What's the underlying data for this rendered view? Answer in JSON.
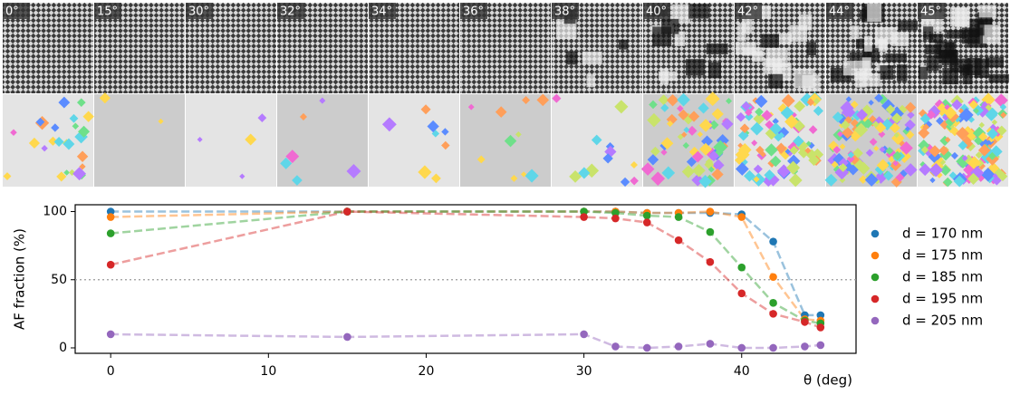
{
  "panels": {
    "labels": [
      "0°",
      "15°",
      "30°",
      "32°",
      "34°",
      "36°",
      "38°",
      "40°",
      "42°",
      "44°",
      "45°"
    ]
  },
  "chart_data": {
    "type": "line",
    "x_label": "θ (deg)",
    "y_label": "AF fraction (%)",
    "x": [
      0,
      15,
      30,
      32,
      34,
      36,
      38,
      40,
      42,
      44,
      45
    ],
    "series": [
      {
        "name": "d = 170 nm",
        "color": "#1f77b4",
        "values": [
          100,
          100,
          100,
          100,
          99,
          99,
          99,
          98,
          78,
          24,
          24
        ]
      },
      {
        "name": "d = 175 nm",
        "color": "#ff7f0e",
        "values": [
          96,
          100,
          100,
          100,
          99,
          99,
          100,
          96,
          52,
          21,
          20
        ]
      },
      {
        "name": "d = 185 nm",
        "color": "#2ca02c",
        "values": [
          84,
          100,
          100,
          99,
          97,
          96,
          85,
          59,
          33,
          20,
          18
        ]
      },
      {
        "name": "d = 195 nm",
        "color": "#d62728",
        "values": [
          61,
          100,
          96,
          95,
          92,
          79,
          63,
          40,
          25,
          19,
          15
        ]
      },
      {
        "name": "d = 205 nm",
        "color": "#9467bd",
        "values": [
          10,
          8,
          10,
          1,
          0,
          1,
          3,
          0,
          0,
          1,
          2
        ]
      }
    ],
    "xlim": [
      -2.25,
      47.25
    ],
    "ylim": [
      -4,
      105
    ],
    "xticks": [
      0,
      10,
      20,
      30,
      40
    ],
    "yticks": [
      0,
      50,
      100
    ],
    "hline": 50,
    "legend": "outside-right"
  }
}
